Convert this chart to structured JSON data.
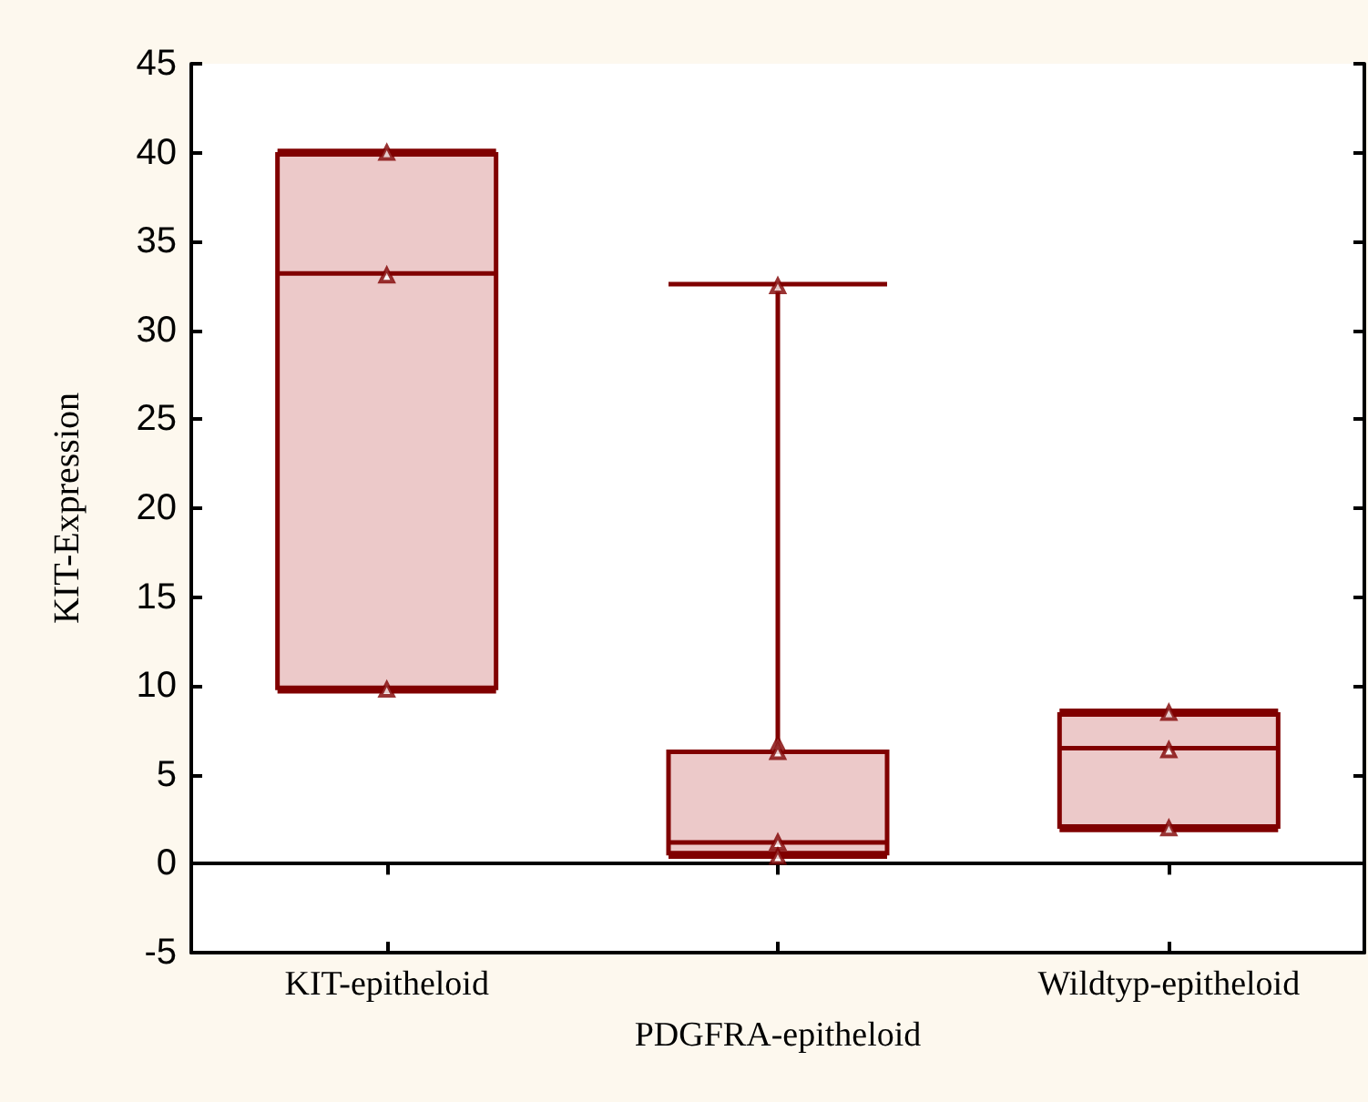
{
  "chart_data": {
    "type": "box",
    "ylabel": "KIT-Expression",
    "categories": [
      "KIT-epitheloid",
      "PDGFRA-epitheloid",
      "Wildtyp-epitheloid"
    ],
    "ylim": [
      -5,
      45
    ],
    "yticks": [
      -5,
      0,
      5,
      10,
      15,
      20,
      25,
      30,
      35,
      40,
      45
    ],
    "series": [
      {
        "color": "#800000",
        "boxes": [
          {
            "low": 9.7,
            "q1": 9.9,
            "median": 33.2,
            "q3": 39.9,
            "high": 40.1
          },
          {
            "low": 0.4,
            "q1": 0.6,
            "median": 1.2,
            "q3": 6.3,
            "high": 32.6
          },
          {
            "low": 1.9,
            "q1": 2.1,
            "median": 6.5,
            "q3": 8.4,
            "high": 8.6
          }
        ]
      },
      {
        "type": "scatter",
        "color": "#800000",
        "marker": "triangle",
        "x": [
          "KIT-epitheloid",
          "KIT-epitheloid",
          "KIT-epitheloid",
          "PDGFRA-epitheloid",
          "PDGFRA-epitheloid",
          "PDGFRA-epitheloid",
          "PDGFRA-epitheloid",
          "PDGFRA-epitheloid",
          "Wildtyp-epitheloid",
          "Wildtyp-epitheloid",
          "Wildtyp-epitheloid"
        ],
        "values": [
          40.0,
          33.1,
          9.8,
          32.5,
          6.7,
          6.3,
          1.2,
          0.4,
          8.5,
          6.4,
          2.0
        ]
      }
    ]
  }
}
